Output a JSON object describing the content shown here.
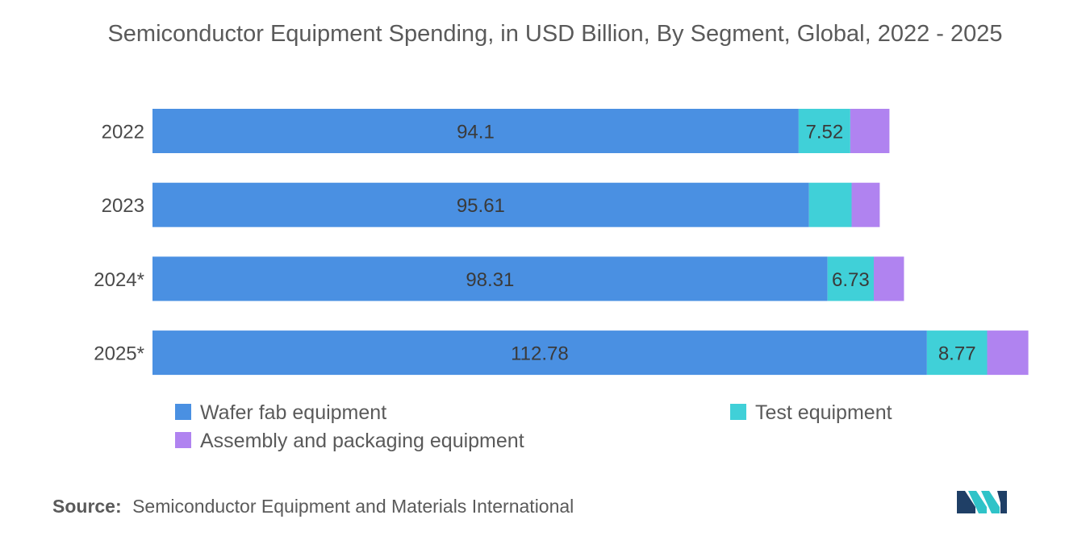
{
  "chart_data": {
    "type": "bar",
    "orientation": "horizontal",
    "stacked": true,
    "title": "Semiconductor Equipment Spending, in USD Billion, By Segment, Global, 2022 - 2025",
    "categories": [
      "2022",
      "2023",
      "2024*",
      "2025*"
    ],
    "series": [
      {
        "name": "Wafer fab equipment",
        "color": "#4a90e2",
        "values": [
          94.1,
          95.61,
          98.31,
          112.78
        ],
        "labels": [
          "94.1",
          "95.61",
          "98.31",
          "112.78"
        ]
      },
      {
        "name": "Test equipment",
        "color": "#40d0d8",
        "values": [
          7.52,
          6.2,
          6.73,
          8.77
        ],
        "labels": [
          "7.52",
          "",
          "6.73",
          "8.77"
        ]
      },
      {
        "name": "Assembly and packaging equipment",
        "color": "#b083f0",
        "values": [
          5.7,
          4.1,
          4.4,
          6.0
        ],
        "labels": [
          "",
          "",
          "",
          ""
        ]
      }
    ],
    "xlim": [
      0,
      127.6
    ],
    "grid": false,
    "legend_position": "bottom"
  },
  "source": {
    "label": "Source:",
    "text": "Semiconductor Equipment and Materials International"
  },
  "logo": {
    "icon": "mordor-intelligence-logo-icon",
    "colors": [
      "#1f3f66",
      "#2fc3c8"
    ]
  }
}
